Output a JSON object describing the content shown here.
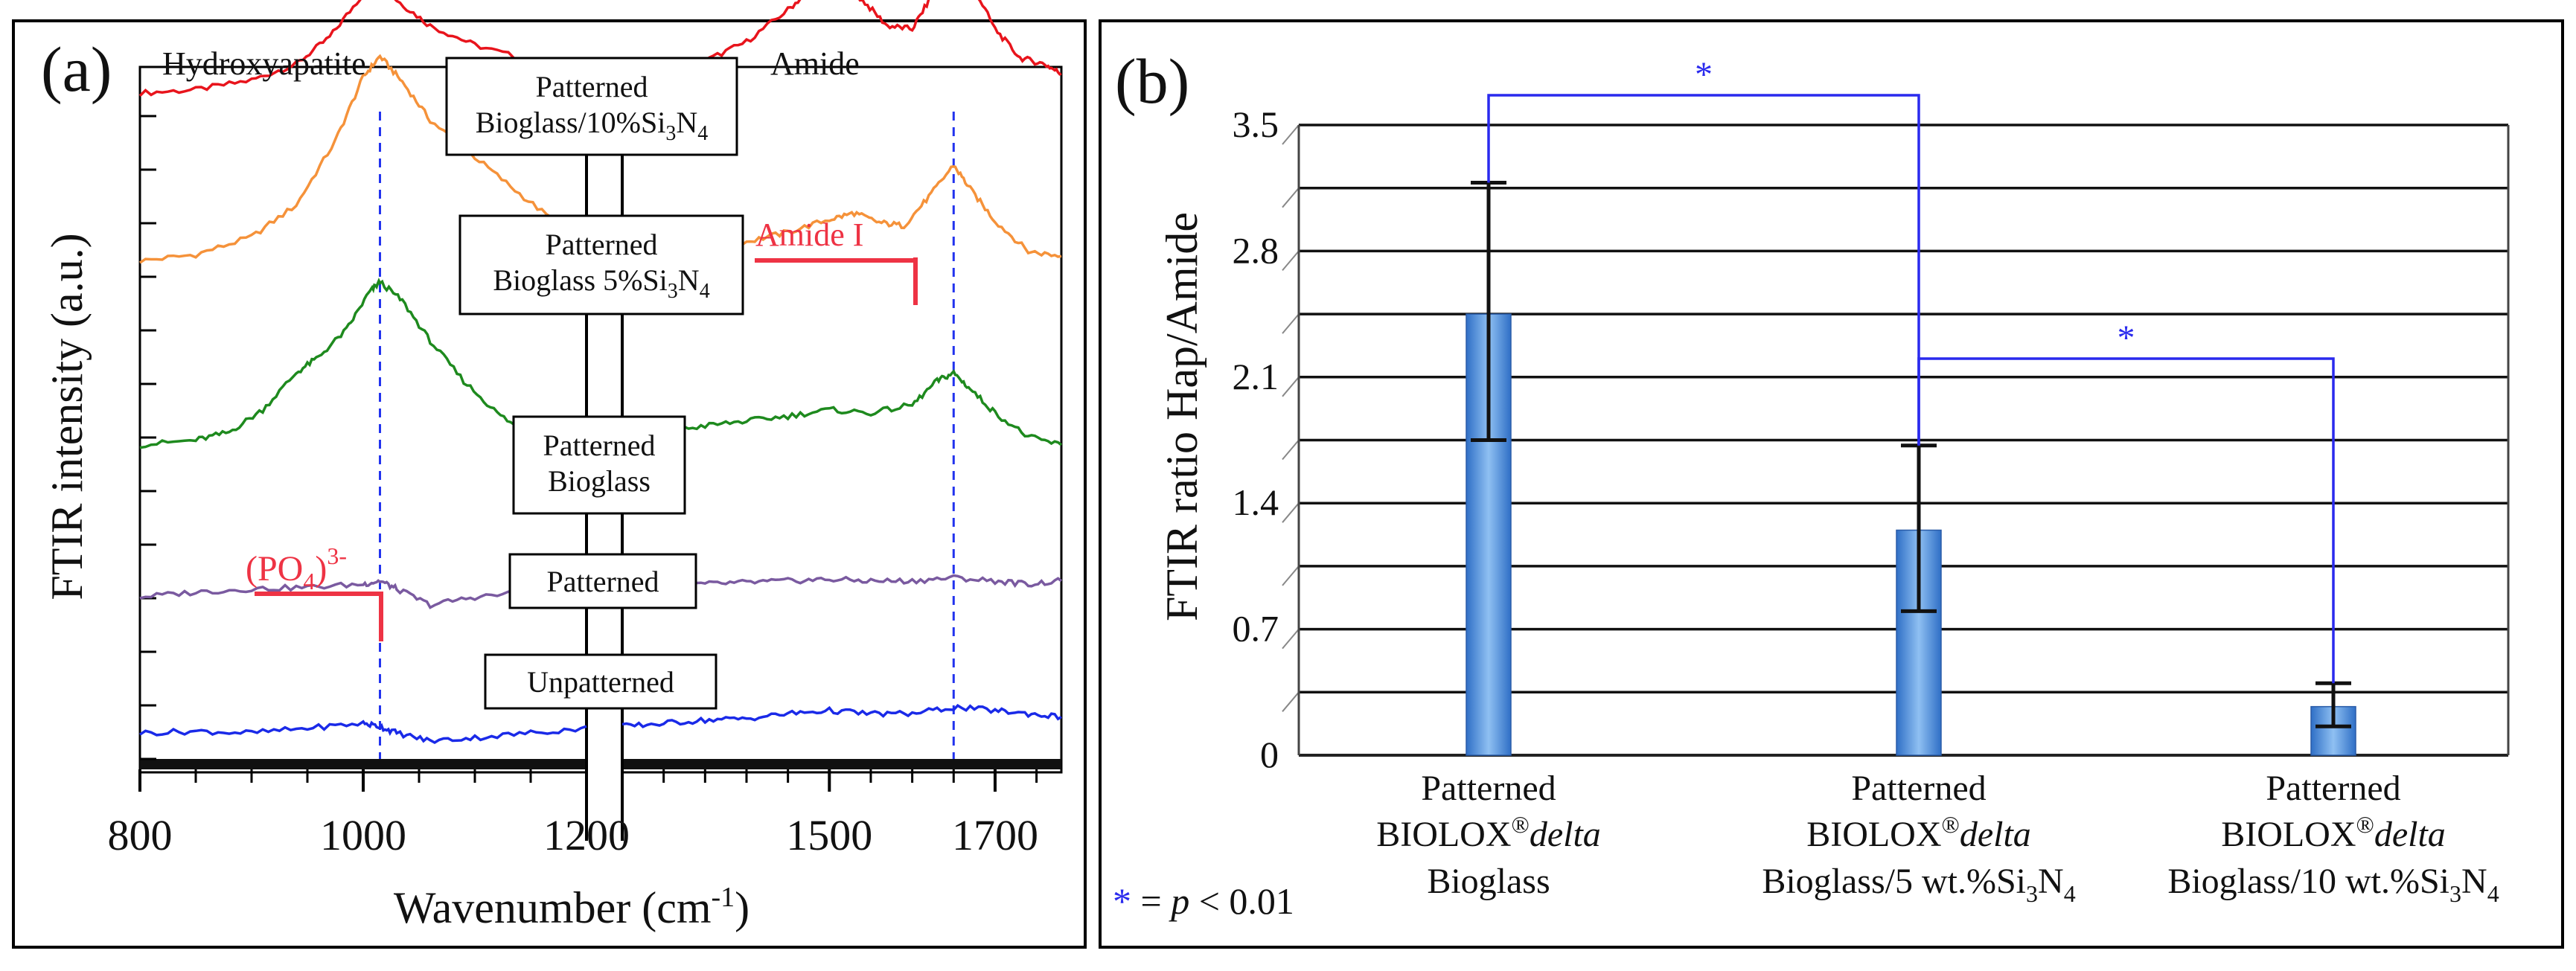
{
  "panel_a": {
    "label": "(a)",
    "region_labels": {
      "left": "Hydroxyapatite",
      "right": "Amide"
    },
    "ylabel": "FTIR intensity (a.u.)",
    "xlabel": {
      "text": "Wavenumber (cm",
      "sup": "-1",
      "close": ")"
    },
    "annotation_amide": "Amide I",
    "annotation_po4": {
      "base": "(PO",
      "sub": "4",
      "close": ")",
      "sup": "3-"
    },
    "line_color_labels": "#ee3344",
    "marker_color": "#2233ee"
  },
  "panel_b": {
    "label": "(b)",
    "sig_star": "*",
    "legend": {
      "star": "*",
      "eq": " = ",
      "p": "p",
      "rest": " < 0.01"
    },
    "bar_color": "#4a88d8",
    "bracket_color": "#2a2aee"
  },
  "chart_data": [
    {
      "type": "line",
      "title": "",
      "xlabel": "Wavenumber (cm-1)",
      "ylabel": "FTIR intensity (a.u.)",
      "axis_break": [
        1200,
        1250
      ],
      "segments": [
        {
          "xlim": [
            800,
            1200
          ],
          "ticks": [
            800,
            1000,
            1200
          ]
        },
        {
          "xlim": [
            1250,
            1780
          ],
          "ticks": [
            1500,
            1700
          ]
        }
      ],
      "tick_labels": [
        "800",
        "1000",
        "1200",
        "1500",
        "1700"
      ],
      "reference_lines": [
        1015,
        1650
      ],
      "series": [
        {
          "name": "Patterned Bioglass/10%Si3N4",
          "color": "#e8141c",
          "offset": 4.0,
          "label_parts": [
            "Patterned",
            "Bioglass/10%Si",
            "3",
            "N",
            "4",
            ""
          ],
          "points": [
            [
              800,
              0.0
            ],
            [
              850,
              0.02
            ],
            [
              900,
              0.08
            ],
            [
              940,
              0.18
            ],
            [
              970,
              0.35
            ],
            [
              1000,
              0.62
            ],
            [
              1015,
              0.7
            ],
            [
              1030,
              0.58
            ],
            [
              1060,
              0.42
            ],
            [
              1100,
              0.3
            ],
            [
              1150,
              0.2
            ],
            [
              1200,
              0.1
            ],
            [
              1250,
              0.05
            ],
            [
              1300,
              0.12
            ],
            [
              1350,
              0.2
            ],
            [
              1400,
              0.32
            ],
            [
              1450,
              0.52
            ],
            [
              1480,
              0.66
            ],
            [
              1510,
              0.7
            ],
            [
              1540,
              0.58
            ],
            [
              1570,
              0.42
            ],
            [
              1600,
              0.4
            ],
            [
              1625,
              0.62
            ],
            [
              1650,
              0.9
            ],
            [
              1670,
              0.7
            ],
            [
              1700,
              0.4
            ],
            [
              1730,
              0.22
            ],
            [
              1760,
              0.18
            ],
            [
              1780,
              0.12
            ]
          ]
        },
        {
          "name": "Patterned Bioglass 5%Si3N4",
          "color": "#f5923a",
          "offset": 2.95,
          "label_parts": [
            "Patterned",
            "Bioglass 5%Si",
            "3",
            "N",
            "4",
            ""
          ],
          "points": [
            [
              800,
              0.0
            ],
            [
              850,
              0.04
            ],
            [
              900,
              0.15
            ],
            [
              940,
              0.35
            ],
            [
              975,
              0.75
            ],
            [
              1000,
              1.15
            ],
            [
              1015,
              1.28
            ],
            [
              1035,
              1.12
            ],
            [
              1060,
              0.88
            ],
            [
              1100,
              0.65
            ],
            [
              1140,
              0.42
            ],
            [
              1180,
              0.2
            ],
            [
              1200,
              0.12
            ],
            [
              1250,
              0.05
            ],
            [
              1300,
              0.08
            ],
            [
              1350,
              0.1
            ],
            [
              1400,
              0.12
            ],
            [
              1450,
              0.18
            ],
            [
              1500,
              0.26
            ],
            [
              1530,
              0.3
            ],
            [
              1560,
              0.24
            ],
            [
              1590,
              0.22
            ],
            [
              1620,
              0.4
            ],
            [
              1650,
              0.6
            ],
            [
              1670,
              0.45
            ],
            [
              1700,
              0.25
            ],
            [
              1740,
              0.06
            ],
            [
              1780,
              0.03
            ]
          ]
        },
        {
          "name": "Patterned Bioglass",
          "color": "#1e8a1e",
          "offset": 1.8,
          "label_parts": [
            "Patterned",
            "Bioglass",
            "",
            "",
            "",
            ""
          ],
          "points": [
            [
              800,
              0.0
            ],
            [
              850,
              0.03
            ],
            [
              880,
              0.08
            ],
            [
              910,
              0.22
            ],
            [
              940,
              0.45
            ],
            [
              960,
              0.55
            ],
            [
              985,
              0.72
            ],
            [
              1005,
              0.95
            ],
            [
              1015,
              1.02
            ],
            [
              1035,
              0.9
            ],
            [
              1060,
              0.65
            ],
            [
              1090,
              0.4
            ],
            [
              1120,
              0.2
            ],
            [
              1150,
              0.05
            ],
            [
              1200,
              -0.05
            ],
            [
              1250,
              0.0
            ],
            [
              1300,
              0.08
            ],
            [
              1350,
              0.12
            ],
            [
              1400,
              0.15
            ],
            [
              1450,
              0.18
            ],
            [
              1500,
              0.22
            ],
            [
              1550,
              0.2
            ],
            [
              1600,
              0.25
            ],
            [
              1630,
              0.4
            ],
            [
              1650,
              0.45
            ],
            [
              1670,
              0.35
            ],
            [
              1700,
              0.2
            ],
            [
              1740,
              0.05
            ],
            [
              1780,
              0.0
            ]
          ]
        },
        {
          "name": "Patterned",
          "color": "#7a5aa0",
          "offset": 0.85,
          "label_parts": [
            "Patterned",
            "",
            "",
            "",
            "",
            ""
          ],
          "points": [
            [
              800,
              0.0
            ],
            [
              850,
              0.03
            ],
            [
              900,
              0.05
            ],
            [
              950,
              0.06
            ],
            [
              1000,
              0.08
            ],
            [
              1015,
              0.1
            ],
            [
              1030,
              0.05
            ],
            [
              1060,
              -0.05
            ],
            [
              1100,
              0.0
            ],
            [
              1150,
              0.03
            ],
            [
              1200,
              0.05
            ],
            [
              1250,
              0.05
            ],
            [
              1300,
              0.07
            ],
            [
              1350,
              0.08
            ],
            [
              1400,
              0.09
            ],
            [
              1450,
              0.1
            ],
            [
              1500,
              0.11
            ],
            [
              1550,
              0.1
            ],
            [
              1600,
              0.1
            ],
            [
              1650,
              0.12
            ],
            [
              1700,
              0.1
            ],
            [
              1740,
              0.08
            ],
            [
              1780,
              0.1
            ]
          ]
        },
        {
          "name": "Unpatterned",
          "color": "#1a2ae8",
          "offset": 0.0,
          "label_parts": [
            "Unpatterned",
            "",
            "",
            "",
            "",
            ""
          ],
          "points": [
            [
              800,
              0.0
            ],
            [
              850,
              0.01
            ],
            [
              900,
              0.0
            ],
            [
              950,
              0.03
            ],
            [
              1000,
              0.06
            ],
            [
              1015,
              0.04
            ],
            [
              1030,
              0.0
            ],
            [
              1060,
              -0.05
            ],
            [
              1100,
              -0.03
            ],
            [
              1150,
              0.0
            ],
            [
              1200,
              0.03
            ],
            [
              1250,
              0.04
            ],
            [
              1300,
              0.06
            ],
            [
              1350,
              0.08
            ],
            [
              1400,
              0.09
            ],
            [
              1450,
              0.12
            ],
            [
              1500,
              0.14
            ],
            [
              1550,
              0.12
            ],
            [
              1600,
              0.12
            ],
            [
              1650,
              0.16
            ],
            [
              1700,
              0.14
            ],
            [
              1740,
              0.12
            ],
            [
              1780,
              0.1
            ]
          ]
        }
      ]
    },
    {
      "type": "bar",
      "title": "",
      "xlabel": "",
      "ylabel": "FTIR ratio Hap/Amide",
      "ylim": [
        0,
        3.5
      ],
      "yticks": [
        0,
        0.7,
        1.4,
        2.1,
        2.8,
        3.5
      ],
      "ytick_labels": [
        "0",
        "0.7",
        "1.4",
        "2.1",
        "2.8",
        "3.5"
      ],
      "gridlines": [
        0.35,
        0.7,
        1.05,
        1.4,
        1.75,
        2.1,
        2.45,
        2.8,
        3.15,
        3.5
      ],
      "categories": [
        {
          "lines": [
            "Patterned",
            "BIOLOX",
            "®",
            "delta",
            "Bioglass"
          ],
          "sub": ""
        },
        {
          "lines": [
            "Patterned",
            "BIOLOX",
            "®",
            "delta",
            "Bioglass/5 wt.%Si"
          ],
          "sub": "3",
          "n": "N",
          "sub2": "4"
        },
        {
          "lines": [
            "Patterned",
            "BIOLOX",
            "®",
            "delta",
            "Bioglass/10 wt.%Si"
          ],
          "sub": "3",
          "n": "N",
          "sub2": "4"
        }
      ],
      "values": [
        2.45,
        1.25,
        0.27
      ],
      "error_low": [
        1.75,
        0.8,
        0.16
      ],
      "error_high": [
        3.18,
        1.72,
        0.4
      ],
      "significance": [
        {
          "from": 0,
          "to": 1,
          "label": "*"
        },
        {
          "from": 1,
          "to": 2,
          "label": "*"
        }
      ]
    }
  ]
}
